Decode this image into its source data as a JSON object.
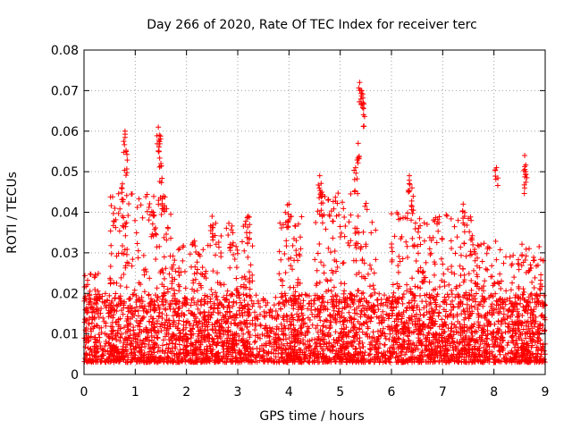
{
  "chart_data": {
    "type": "scatter",
    "title": "Day 266 of 2020, Rate Of TEC Index for receiver terc",
    "xlabel": "GPS time / hours",
    "ylabel": "ROTI / TECUs",
    "xlim": [
      0,
      9
    ],
    "ylim": [
      0,
      0.08
    ],
    "xticks": [
      0,
      1,
      2,
      3,
      4,
      5,
      6,
      7,
      8,
      9
    ],
    "xtick_labels": [
      "0",
      "1",
      "2",
      "3",
      "4",
      "5",
      "6",
      "7",
      "8",
      "9"
    ],
    "yticks": [
      0,
      0.01,
      0.02,
      0.03,
      0.04,
      0.05,
      0.06,
      0.07,
      0.08
    ],
    "ytick_labels": [
      "0",
      "0.01",
      "0.02",
      "0.03",
      "0.04",
      "0.05",
      "0.06",
      "0.07",
      "0.08"
    ],
    "grid": true,
    "marker": "+",
    "marker_color": "#ff0000",
    "baseline_range": [
      0.003,
      0.02
    ],
    "peaks": [
      {
        "x": 0.8,
        "y": 0.06
      },
      {
        "x": 0.82,
        "y": 0.055
      },
      {
        "x": 1.45,
        "y": 0.061
      },
      {
        "x": 1.47,
        "y": 0.059
      },
      {
        "x": 1.5,
        "y": 0.052
      },
      {
        "x": 1.55,
        "y": 0.044
      },
      {
        "x": 1.35,
        "y": 0.04
      },
      {
        "x": 0.6,
        "y": 0.041
      },
      {
        "x": 0.75,
        "y": 0.047
      },
      {
        "x": 2.5,
        "y": 0.039
      },
      {
        "x": 3.2,
        "y": 0.039
      },
      {
        "x": 4.0,
        "y": 0.042
      },
      {
        "x": 4.6,
        "y": 0.049
      },
      {
        "x": 4.65,
        "y": 0.044
      },
      {
        "x": 5.35,
        "y": 0.057
      },
      {
        "x": 5.38,
        "y": 0.072
      },
      {
        "x": 5.42,
        "y": 0.07
      },
      {
        "x": 5.45,
        "y": 0.067
      },
      {
        "x": 5.3,
        "y": 0.051
      },
      {
        "x": 6.35,
        "y": 0.049
      },
      {
        "x": 6.4,
        "y": 0.046
      },
      {
        "x": 7.4,
        "y": 0.042
      },
      {
        "x": 8.05,
        "y": 0.051
      },
      {
        "x": 8.6,
        "y": 0.054
      },
      {
        "x": 8.62,
        "y": 0.05
      }
    ],
    "activity_regions": [
      {
        "x_from": 0.0,
        "x_to": 0.3,
        "y_max": 0.025
      },
      {
        "x_from": 0.5,
        "x_to": 1.7,
        "y_max": 0.045
      },
      {
        "x_from": 1.7,
        "x_to": 2.5,
        "y_max": 0.033
      },
      {
        "x_from": 2.5,
        "x_to": 3.3,
        "y_max": 0.038
      },
      {
        "x_from": 3.8,
        "x_to": 4.3,
        "y_max": 0.04
      },
      {
        "x_from": 4.5,
        "x_to": 5.7,
        "y_max": 0.045
      },
      {
        "x_from": 6.0,
        "x_to": 6.6,
        "y_max": 0.04
      },
      {
        "x_from": 6.6,
        "x_to": 7.6,
        "y_max": 0.04
      },
      {
        "x_from": 7.6,
        "x_to": 9.0,
        "y_max": 0.033
      }
    ]
  }
}
